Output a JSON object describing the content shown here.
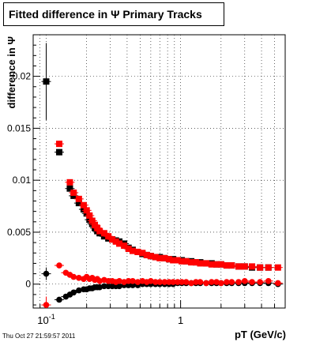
{
  "chart_data": {
    "type": "scatter",
    "title": "Fitted difference in Ψ   Primary Tracks",
    "xlabel": "pT (GeV/c)",
    "ylabel": "difference in Ψ",
    "x_scale": "log",
    "xlim": [
      0.08,
      6.0
    ],
    "ylim": [
      -0.0023,
      0.024
    ],
    "x_major_ticks": [
      {
        "value": 0.1,
        "label": "10^-1"
      },
      {
        "value": 1,
        "label": "1"
      }
    ],
    "y_ticks": [
      {
        "value": 0,
        "label": "0"
      },
      {
        "value": 0.005,
        "label": "0.005"
      },
      {
        "value": 0.01,
        "label": "0.01"
      },
      {
        "value": 0.015,
        "label": "0.015"
      },
      {
        "value": 0.02,
        "label": "0.02"
      }
    ],
    "grid": true,
    "series": [
      {
        "color": "#000000",
        "marker": "square",
        "x": [
          0.1,
          0.125,
          0.15,
          0.16,
          0.175,
          0.19,
          0.2,
          0.21,
          0.22,
          0.23,
          0.24,
          0.25,
          0.27,
          0.29,
          0.31,
          0.33,
          0.35,
          0.38,
          0.41,
          0.44,
          0.48,
          0.52,
          0.56,
          0.6,
          0.65,
          0.7,
          0.76,
          0.82,
          0.88,
          0.95,
          1.02,
          1.1,
          1.2,
          1.3,
          1.4,
          1.55,
          1.7,
          1.85,
          2.0,
          2.2,
          2.4,
          2.7,
          3.0,
          3.4,
          3.9,
          4.5
        ],
        "y": [
          0.0195,
          0.0127,
          0.0092,
          0.0085,
          0.0078,
          0.0072,
          0.0068,
          0.0062,
          0.0058,
          0.0054,
          0.0051,
          0.0049,
          0.0046,
          0.0044,
          0.0043,
          0.0042,
          0.0041,
          0.0039,
          0.0035,
          0.0033,
          0.0031,
          0.0029,
          0.0028,
          0.0027,
          0.0026,
          0.0026,
          0.0025,
          0.0024,
          0.0024,
          0.0023,
          0.0023,
          0.0022,
          0.0022,
          0.0021,
          0.0021,
          0.002,
          0.002,
          0.0019,
          0.0019,
          0.0018,
          0.0018,
          0.0017,
          0.0017,
          0.0016,
          0.0016,
          0.0016
        ],
        "y_err": [
          0.0037,
          0.0003,
          0.0002,
          0.0002,
          0.0002,
          0.0001,
          0.0001,
          0.0001,
          0.0001,
          0.0001,
          0.0001,
          0.0001,
          0.0001,
          0.0001,
          0.0001,
          0.0001,
          0.0001,
          0.0001,
          0.0001,
          0.0001,
          0.0001,
          0.0001,
          0.0001,
          0.0001,
          0.0001,
          0.0001,
          0.0001,
          0.0001,
          0.0001,
          0.0001,
          0.0001,
          0.0001,
          0.0001,
          0.0001,
          0.0001,
          0.0001,
          0.0001,
          0.0001,
          0.0001,
          0.0001,
          0.0001,
          0.0001,
          0.0001,
          0.0001,
          0.0001,
          0.0001
        ]
      },
      {
        "color": "#ff0000",
        "marker": "square",
        "x": [
          0.125,
          0.15,
          0.16,
          0.175,
          0.19,
          0.2,
          0.21,
          0.22,
          0.23,
          0.24,
          0.25,
          0.27,
          0.29,
          0.31,
          0.33,
          0.35,
          0.38,
          0.41,
          0.44,
          0.48,
          0.52,
          0.56,
          0.6,
          0.65,
          0.7,
          0.76,
          0.82,
          0.88,
          0.95,
          1.02,
          1.1,
          1.2,
          1.3,
          1.4,
          1.55,
          1.7,
          1.85,
          2.0,
          2.2,
          2.4,
          2.7,
          3.0,
          3.4,
          3.9,
          4.5,
          5.3
        ],
        "y": [
          0.0135,
          0.0098,
          0.0088,
          0.0082,
          0.0076,
          0.0071,
          0.0066,
          0.0061,
          0.0057,
          0.0054,
          0.0051,
          0.0049,
          0.0046,
          0.0043,
          0.0041,
          0.0039,
          0.0037,
          0.0034,
          0.0032,
          0.0031,
          0.003,
          0.0028,
          0.0027,
          0.0026,
          0.0025,
          0.0025,
          0.0024,
          0.0023,
          0.0023,
          0.0022,
          0.0022,
          0.0021,
          0.0021,
          0.002,
          0.002,
          0.0019,
          0.0019,
          0.0019,
          0.0018,
          0.0018,
          0.0017,
          0.0017,
          0.0017,
          0.0016,
          0.0016,
          0.0016
        ],
        "y_err": [
          0.0003,
          0.0002,
          0.0002,
          0.0002,
          0.0001,
          0.0001,
          0.0001,
          0.0001,
          0.0001,
          0.0001,
          0.0001,
          0.0001,
          0.0001,
          0.0001,
          0.0001,
          0.0001,
          0.0001,
          0.0001,
          0.0001,
          0.0001,
          0.0001,
          0.0001,
          0.0001,
          0.0001,
          0.0001,
          0.0001,
          0.0001,
          0.0001,
          0.0001,
          0.0001,
          0.0001,
          0.0001,
          0.0001,
          0.0001,
          0.0001,
          0.0001,
          0.0001,
          0.0001,
          0.0001,
          0.0001,
          0.0001,
          0.0001,
          0.0001,
          0.0001,
          0.0001,
          0.0001
        ]
      },
      {
        "color": "#000000",
        "marker": "circle",
        "x": [
          0.1,
          0.125,
          0.14,
          0.15,
          0.16,
          0.175,
          0.19,
          0.2,
          0.21,
          0.22,
          0.23,
          0.24,
          0.25,
          0.27,
          0.29,
          0.31,
          0.33,
          0.35,
          0.38,
          0.41,
          0.44,
          0.48,
          0.52,
          0.56,
          0.6,
          0.65,
          0.7,
          0.76,
          0.82,
          0.88,
          0.95,
          1.02,
          1.1,
          1.2,
          1.3,
          1.4,
          1.55,
          1.7,
          1.85,
          2.0,
          2.2,
          2.4,
          2.7,
          3.0,
          3.4,
          3.9,
          4.5,
          5.3
        ],
        "y": [
          0.001,
          -0.0015,
          -0.0012,
          -0.001,
          -0.0008,
          -0.0006,
          -0.0005,
          -0.0005,
          -0.0004,
          -0.0004,
          -0.0003,
          -0.0003,
          -0.0003,
          -0.0002,
          -0.0002,
          -0.0002,
          -0.0002,
          -0.0002,
          -0.0001,
          -0.0001,
          -0.0001,
          -0.0001,
          0.0,
          0.0,
          0.0,
          0.0,
          0.0,
          0.0,
          0.0,
          0.0,
          0.0001,
          0.0001,
          0.0001,
          0.0001,
          0.0001,
          0.0001,
          0.0001,
          0.0001,
          0.0001,
          0.0001,
          0.0001,
          0.0001,
          0.0001,
          0.0001,
          0.0001,
          0.0001,
          0.0001,
          0.0
        ],
        "y_err": [
          0.0006,
          0.0002,
          0.0002,
          0.0001,
          0.0001,
          0.0001,
          0.0001,
          0.0001,
          0.0001,
          0.0001,
          0.0001,
          0.0001,
          0.0001,
          0.0001,
          0.0001,
          0.0001,
          0.0001,
          0.0001,
          0.0001,
          0.0001,
          0.0001,
          0.0001,
          0.0001,
          0.0001,
          0.0001,
          0.0001,
          0.0001,
          0.0001,
          0.0001,
          0.0001,
          0.0001,
          0.0001,
          0.0001,
          0.0001,
          0.0001,
          0.0001,
          0.0001,
          0.0001,
          0.0001,
          0.0001,
          0.0001,
          0.0001,
          0.0001,
          0.0001,
          0.0001,
          0.0001,
          0.0001,
          0.0001
        ]
      },
      {
        "color": "#ff0000",
        "marker": "circle",
        "x": [
          0.1,
          0.125,
          0.14,
          0.15,
          0.16,
          0.175,
          0.19,
          0.2,
          0.21,
          0.22,
          0.23,
          0.24,
          0.25,
          0.27,
          0.29,
          0.31,
          0.33,
          0.35,
          0.38,
          0.41,
          0.44,
          0.48,
          0.52,
          0.56,
          0.6,
          0.65,
          0.7,
          0.76,
          0.82,
          0.88,
          0.95,
          1.02,
          1.1,
          1.2,
          1.3,
          1.4,
          1.55,
          1.7,
          1.85,
          2.0,
          2.2,
          2.4,
          2.7,
          3.0,
          3.4,
          3.9,
          4.5,
          5.3
        ],
        "y": [
          -0.002,
          0.0018,
          0.0011,
          0.0009,
          0.0007,
          0.0006,
          0.0005,
          0.0007,
          0.0005,
          0.0006,
          0.0004,
          0.0005,
          0.0003,
          0.0004,
          0.0003,
          0.0003,
          0.0002,
          0.0003,
          0.0002,
          0.0003,
          0.0003,
          0.0002,
          0.0003,
          0.0002,
          0.0003,
          0.0002,
          0.0002,
          0.0002,
          0.0002,
          0.0002,
          0.0002,
          0.0002,
          0.0002,
          0.0001,
          0.0002,
          0.0002,
          0.0001,
          0.0002,
          0.0002,
          0.0001,
          0.0002,
          0.0002,
          0.0002,
          0.0003,
          0.0002,
          0.0002,
          0.0003,
          0.0001
        ],
        "y_err": [
          0.0008,
          0.0002,
          0.0002,
          0.0001,
          0.0001,
          0.0001,
          0.0001,
          0.0001,
          0.0001,
          0.0001,
          0.0001,
          0.0001,
          0.0001,
          0.0001,
          0.0001,
          0.0001,
          0.0001,
          0.0001,
          0.0001,
          0.0001,
          0.0001,
          0.0001,
          0.0001,
          0.0001,
          0.0001,
          0.0001,
          0.0001,
          0.0001,
          0.0001,
          0.0001,
          0.0001,
          0.0001,
          0.0001,
          0.0001,
          0.0001,
          0.0001,
          0.0001,
          0.0001,
          0.0001,
          0.0001,
          0.0001,
          0.0001,
          0.0001,
          0.0001,
          0.0001,
          0.0001,
          0.0001,
          0.0001
        ]
      }
    ]
  },
  "footer": {
    "date": "Thu Oct 27 21:59:57 2011"
  }
}
